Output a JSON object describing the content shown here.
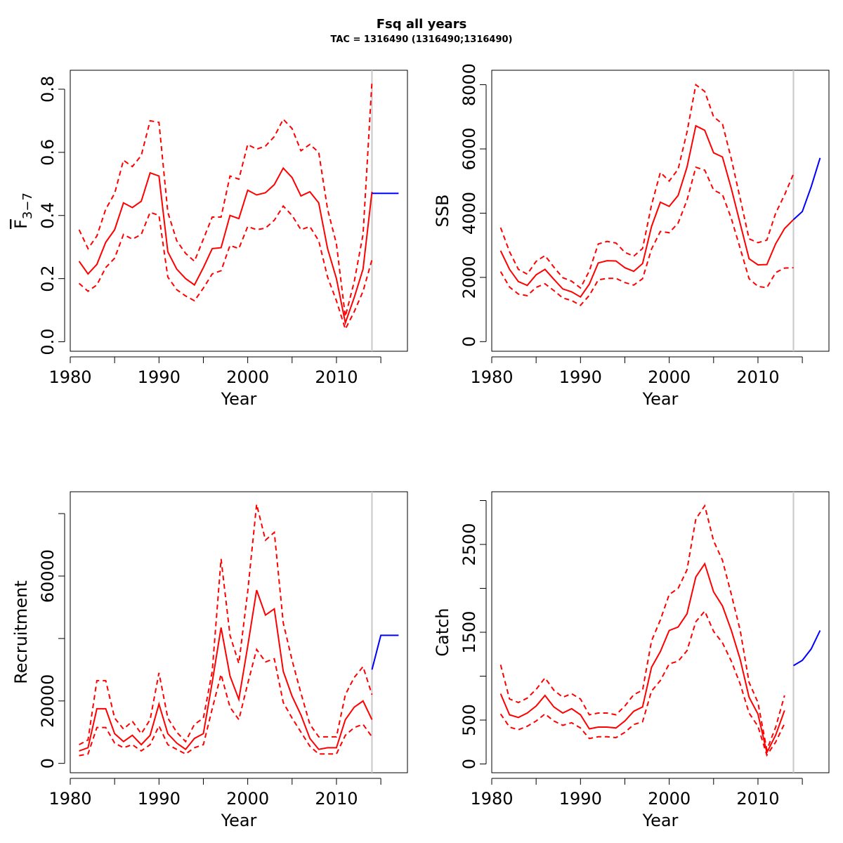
{
  "title": "Fsq all years",
  "subtitle": "TAC = 1316490 (1316490;1316490)",
  "colors": {
    "estimate": "#ff0000",
    "projection": "#0000ff",
    "vline": "#c8c8c8"
  },
  "chart_data": [
    {
      "type": "line",
      "panel": "top-left",
      "xlabel": "Year",
      "ylabel": "F3-7",
      "ylabel_main": "F",
      "ylabel_sub": "3−7",
      "xlim": [
        1980,
        2018
      ],
      "ylim": [
        -0.03,
        0.86
      ],
      "xticks": [
        1980,
        1985,
        1990,
        1995,
        2000,
        2005,
        2010,
        2015
      ],
      "xtick_labels": [
        "1980",
        "",
        "1990",
        "",
        "2000",
        "",
        "2010",
        ""
      ],
      "yticks": [
        0.0,
        0.2,
        0.4,
        0.6,
        0.8
      ],
      "ytick_labels": [
        "0.0",
        "0.2",
        "0.4",
        "0.6",
        "0.8"
      ],
      "vline": 2014,
      "x": [
        1981,
        1982,
        1983,
        1984,
        1985,
        1986,
        1987,
        1988,
        1989,
        1990,
        1991,
        1992,
        1993,
        1994,
        1995,
        1996,
        1997,
        1998,
        1999,
        2000,
        2001,
        2002,
        2003,
        2004,
        2005,
        2006,
        2007,
        2008,
        2009,
        2010,
        2011,
        2012,
        2013,
        2014
      ],
      "series": [
        {
          "role": "estimate",
          "values": [
            0.255,
            0.215,
            0.245,
            0.315,
            0.355,
            0.44,
            0.425,
            0.445,
            0.535,
            0.525,
            0.285,
            0.23,
            0.2,
            0.18,
            0.235,
            0.295,
            0.298,
            0.4,
            0.39,
            0.48,
            0.465,
            0.472,
            0.498,
            0.55,
            0.52,
            0.462,
            0.475,
            0.44,
            0.295,
            0.2,
            0.06,
            0.14,
            0.23,
            0.475
          ]
        },
        {
          "role": "upper",
          "values": [
            0.355,
            0.295,
            0.335,
            0.42,
            0.47,
            0.575,
            0.555,
            0.59,
            0.7,
            0.695,
            0.41,
            0.32,
            0.28,
            0.255,
            0.325,
            0.395,
            0.395,
            0.525,
            0.515,
            0.625,
            0.61,
            0.62,
            0.65,
            0.705,
            0.675,
            0.605,
            0.625,
            0.6,
            0.42,
            0.31,
            0.08,
            0.19,
            0.34,
            0.825
          ]
        },
        {
          "role": "lower",
          "values": [
            0.185,
            0.16,
            0.18,
            0.235,
            0.265,
            0.34,
            0.325,
            0.34,
            0.41,
            0.4,
            0.205,
            0.165,
            0.145,
            0.13,
            0.17,
            0.215,
            0.225,
            0.305,
            0.295,
            0.365,
            0.355,
            0.36,
            0.385,
            0.43,
            0.4,
            0.355,
            0.365,
            0.32,
            0.205,
            0.13,
            0.04,
            0.095,
            0.16,
            0.26
          ]
        }
      ],
      "projection": {
        "x": [
          2014,
          2015,
          2016,
          2017
        ],
        "values": [
          0.47,
          0.47,
          0.47,
          0.47
        ]
      }
    },
    {
      "type": "line",
      "panel": "top-right",
      "xlabel": "Year",
      "ylabel": "SSB",
      "xlim": [
        1980,
        2018
      ],
      "ylim": [
        -300,
        8450
      ],
      "xticks": [
        1980,
        1985,
        1990,
        1995,
        2000,
        2005,
        2010,
        2015
      ],
      "xtick_labels": [
        "1980",
        "",
        "1990",
        "",
        "2000",
        "",
        "2010",
        ""
      ],
      "yticks": [
        0,
        2000,
        4000,
        6000,
        8000
      ],
      "ytick_labels": [
        "0",
        "2000",
        "4000",
        "6000",
        "8000"
      ],
      "vline": 2014,
      "x": [
        1981,
        1982,
        1983,
        1984,
        1985,
        1986,
        1987,
        1988,
        1989,
        1990,
        1991,
        1992,
        1993,
        1994,
        1995,
        1996,
        1997,
        1998,
        1999,
        2000,
        2001,
        2002,
        2003,
        2004,
        2005,
        2006,
        2007,
        2008,
        2009,
        2010,
        2011,
        2012,
        2013,
        2014
      ],
      "series": [
        {
          "role": "estimate",
          "values": [
            2830,
            2250,
            1870,
            1750,
            2080,
            2250,
            1940,
            1640,
            1550,
            1390,
            1790,
            2450,
            2520,
            2510,
            2300,
            2190,
            2430,
            3580,
            4340,
            4210,
            4550,
            5430,
            6720,
            6580,
            5880,
            5750,
            4760,
            3670,
            2580,
            2390,
            2400,
            3050,
            3520,
            3800
          ]
        },
        {
          "role": "upper",
          "values": [
            3550,
            2800,
            2250,
            2100,
            2500,
            2680,
            2320,
            1990,
            1880,
            1670,
            2200,
            3040,
            3120,
            3070,
            2780,
            2660,
            2900,
            4250,
            5270,
            5000,
            5370,
            6520,
            8000,
            7790,
            7000,
            6780,
            5680,
            4450,
            3200,
            3080,
            3160,
            4000,
            4570,
            5220
          ]
        },
        {
          "role": "lower",
          "values": [
            2180,
            1700,
            1480,
            1430,
            1690,
            1800,
            1590,
            1360,
            1280,
            1130,
            1440,
            1920,
            1970,
            1970,
            1840,
            1760,
            1960,
            2880,
            3430,
            3390,
            3690,
            4400,
            5430,
            5340,
            4720,
            4580,
            3830,
            2900,
            1960,
            1720,
            1680,
            2150,
            2290,
            2300
          ]
        }
      ],
      "projection": {
        "x": [
          2014,
          2015,
          2016,
          2017
        ],
        "values": [
          3800,
          4050,
          4820,
          5720
        ]
      }
    },
    {
      "type": "line",
      "panel": "bottom-left",
      "xlabel": "Year",
      "ylabel": "Recruitment",
      "xlim": [
        1980,
        2018
      ],
      "ylim": [
        -3000,
        87000
      ],
      "xticks": [
        1980,
        1985,
        1990,
        1995,
        2000,
        2005,
        2010,
        2015
      ],
      "xtick_labels": [
        "1980",
        "",
        "1990",
        "",
        "2000",
        "",
        "2010",
        ""
      ],
      "yticks": [
        0,
        20000,
        40000,
        60000,
        80000
      ],
      "ytick_labels": [
        "0",
        "20000",
        "",
        "60000",
        ""
      ],
      "vline": 2014,
      "x": [
        1981,
        1982,
        1983,
        1984,
        1985,
        1986,
        1987,
        1988,
        1989,
        1990,
        1991,
        1992,
        1993,
        1994,
        1995,
        1996,
        1997,
        1998,
        1999,
        2000,
        2001,
        2002,
        2003,
        2004,
        2005,
        2006,
        2007,
        2008,
        2009,
        2010,
        2011,
        2012,
        2013,
        2014
      ],
      "series": [
        {
          "role": "estimate",
          "values": [
            4000,
            5000,
            17500,
            17500,
            9500,
            7000,
            9000,
            6000,
            9000,
            19000,
            9500,
            6500,
            4500,
            8000,
            9500,
            26000,
            43500,
            28000,
            20500,
            37500,
            55500,
            47500,
            49500,
            29500,
            21500,
            15500,
            8000,
            4500,
            5000,
            5000,
            14000,
            18000,
            20000,
            14000
          ]
        },
        {
          "role": "upper",
          "values": [
            6000,
            7500,
            26500,
            26500,
            14500,
            11000,
            13500,
            9500,
            14000,
            29000,
            14500,
            10000,
            7000,
            12500,
            14500,
            29500,
            65500,
            41000,
            32000,
            55000,
            83000,
            71500,
            74000,
            45000,
            33000,
            22500,
            12500,
            8500,
            8500,
            8500,
            22000,
            27500,
            31000,
            22000
          ]
        },
        {
          "role": "lower",
          "values": [
            2500,
            3000,
            11500,
            11500,
            6500,
            5000,
            6000,
            4000,
            6000,
            12000,
            6000,
            4500,
            3000,
            5000,
            6000,
            17500,
            28500,
            18000,
            14000,
            25500,
            36500,
            32500,
            33500,
            19500,
            14500,
            10000,
            5500,
            3000,
            3000,
            3000,
            9000,
            11500,
            12500,
            8500
          ]
        }
      ],
      "projection": {
        "x": [
          2014,
          2015,
          2016,
          2017
        ],
        "values": [
          30000,
          41000,
          41000,
          41000
        ]
      }
    },
    {
      "type": "line",
      "panel": "bottom-right",
      "xlabel": "Year",
      "ylabel": "Catch",
      "xlim": [
        1980,
        2018
      ],
      "ylim": [
        -100,
        3100
      ],
      "xticks": [
        1980,
        1985,
        1990,
        1995,
        2000,
        2005,
        2010,
        2015
      ],
      "xtick_labels": [
        "1980",
        "",
        "1990",
        "",
        "2000",
        "",
        "2010",
        ""
      ],
      "yticks": [
        0,
        500,
        1000,
        1500,
        2000,
        2500,
        3000
      ],
      "ytick_labels": [
        "0",
        "500",
        "",
        "1500",
        "",
        "2500",
        ""
      ],
      "vline": 2014,
      "x": [
        1981,
        1982,
        1983,
        1984,
        1985,
        1986,
        1987,
        1988,
        1989,
        1990,
        1991,
        1992,
        1993,
        1994,
        1995,
        1996,
        1997,
        1998,
        1999,
        2000,
        2001,
        2002,
        2003,
        2004,
        2005,
        2006,
        2007,
        2008,
        2009,
        2010,
        2011,
        2012,
        2013
      ],
      "series": [
        {
          "role": "estimate",
          "values": [
            800,
            560,
            530,
            580,
            660,
            780,
            650,
            580,
            630,
            560,
            400,
            420,
            420,
            410,
            490,
            600,
            650,
            1100,
            1280,
            1520,
            1560,
            1710,
            2130,
            2280,
            1960,
            1800,
            1520,
            1190,
            760,
            570,
            130,
            330,
            610
          ]
        },
        {
          "role": "upper",
          "values": [
            1130,
            740,
            700,
            750,
            850,
            980,
            840,
            760,
            800,
            740,
            560,
            580,
            580,
            560,
            660,
            790,
            840,
            1400,
            1640,
            1930,
            2000,
            2210,
            2790,
            2940,
            2540,
            2320,
            1930,
            1520,
            930,
            700,
            160,
            420,
            780
          ]
        },
        {
          "role": "lower",
          "values": [
            570,
            420,
            390,
            430,
            490,
            570,
            490,
            440,
            470,
            410,
            290,
            310,
            310,
            300,
            360,
            450,
            480,
            830,
            950,
            1140,
            1170,
            1290,
            1620,
            1740,
            1510,
            1380,
            1170,
            910,
            580,
            430,
            100,
            250,
            460
          ]
        }
      ],
      "projection": {
        "x": [
          2014,
          2015,
          2016,
          2017
        ],
        "values": [
          1120,
          1180,
          1310,
          1520
        ]
      }
    }
  ]
}
